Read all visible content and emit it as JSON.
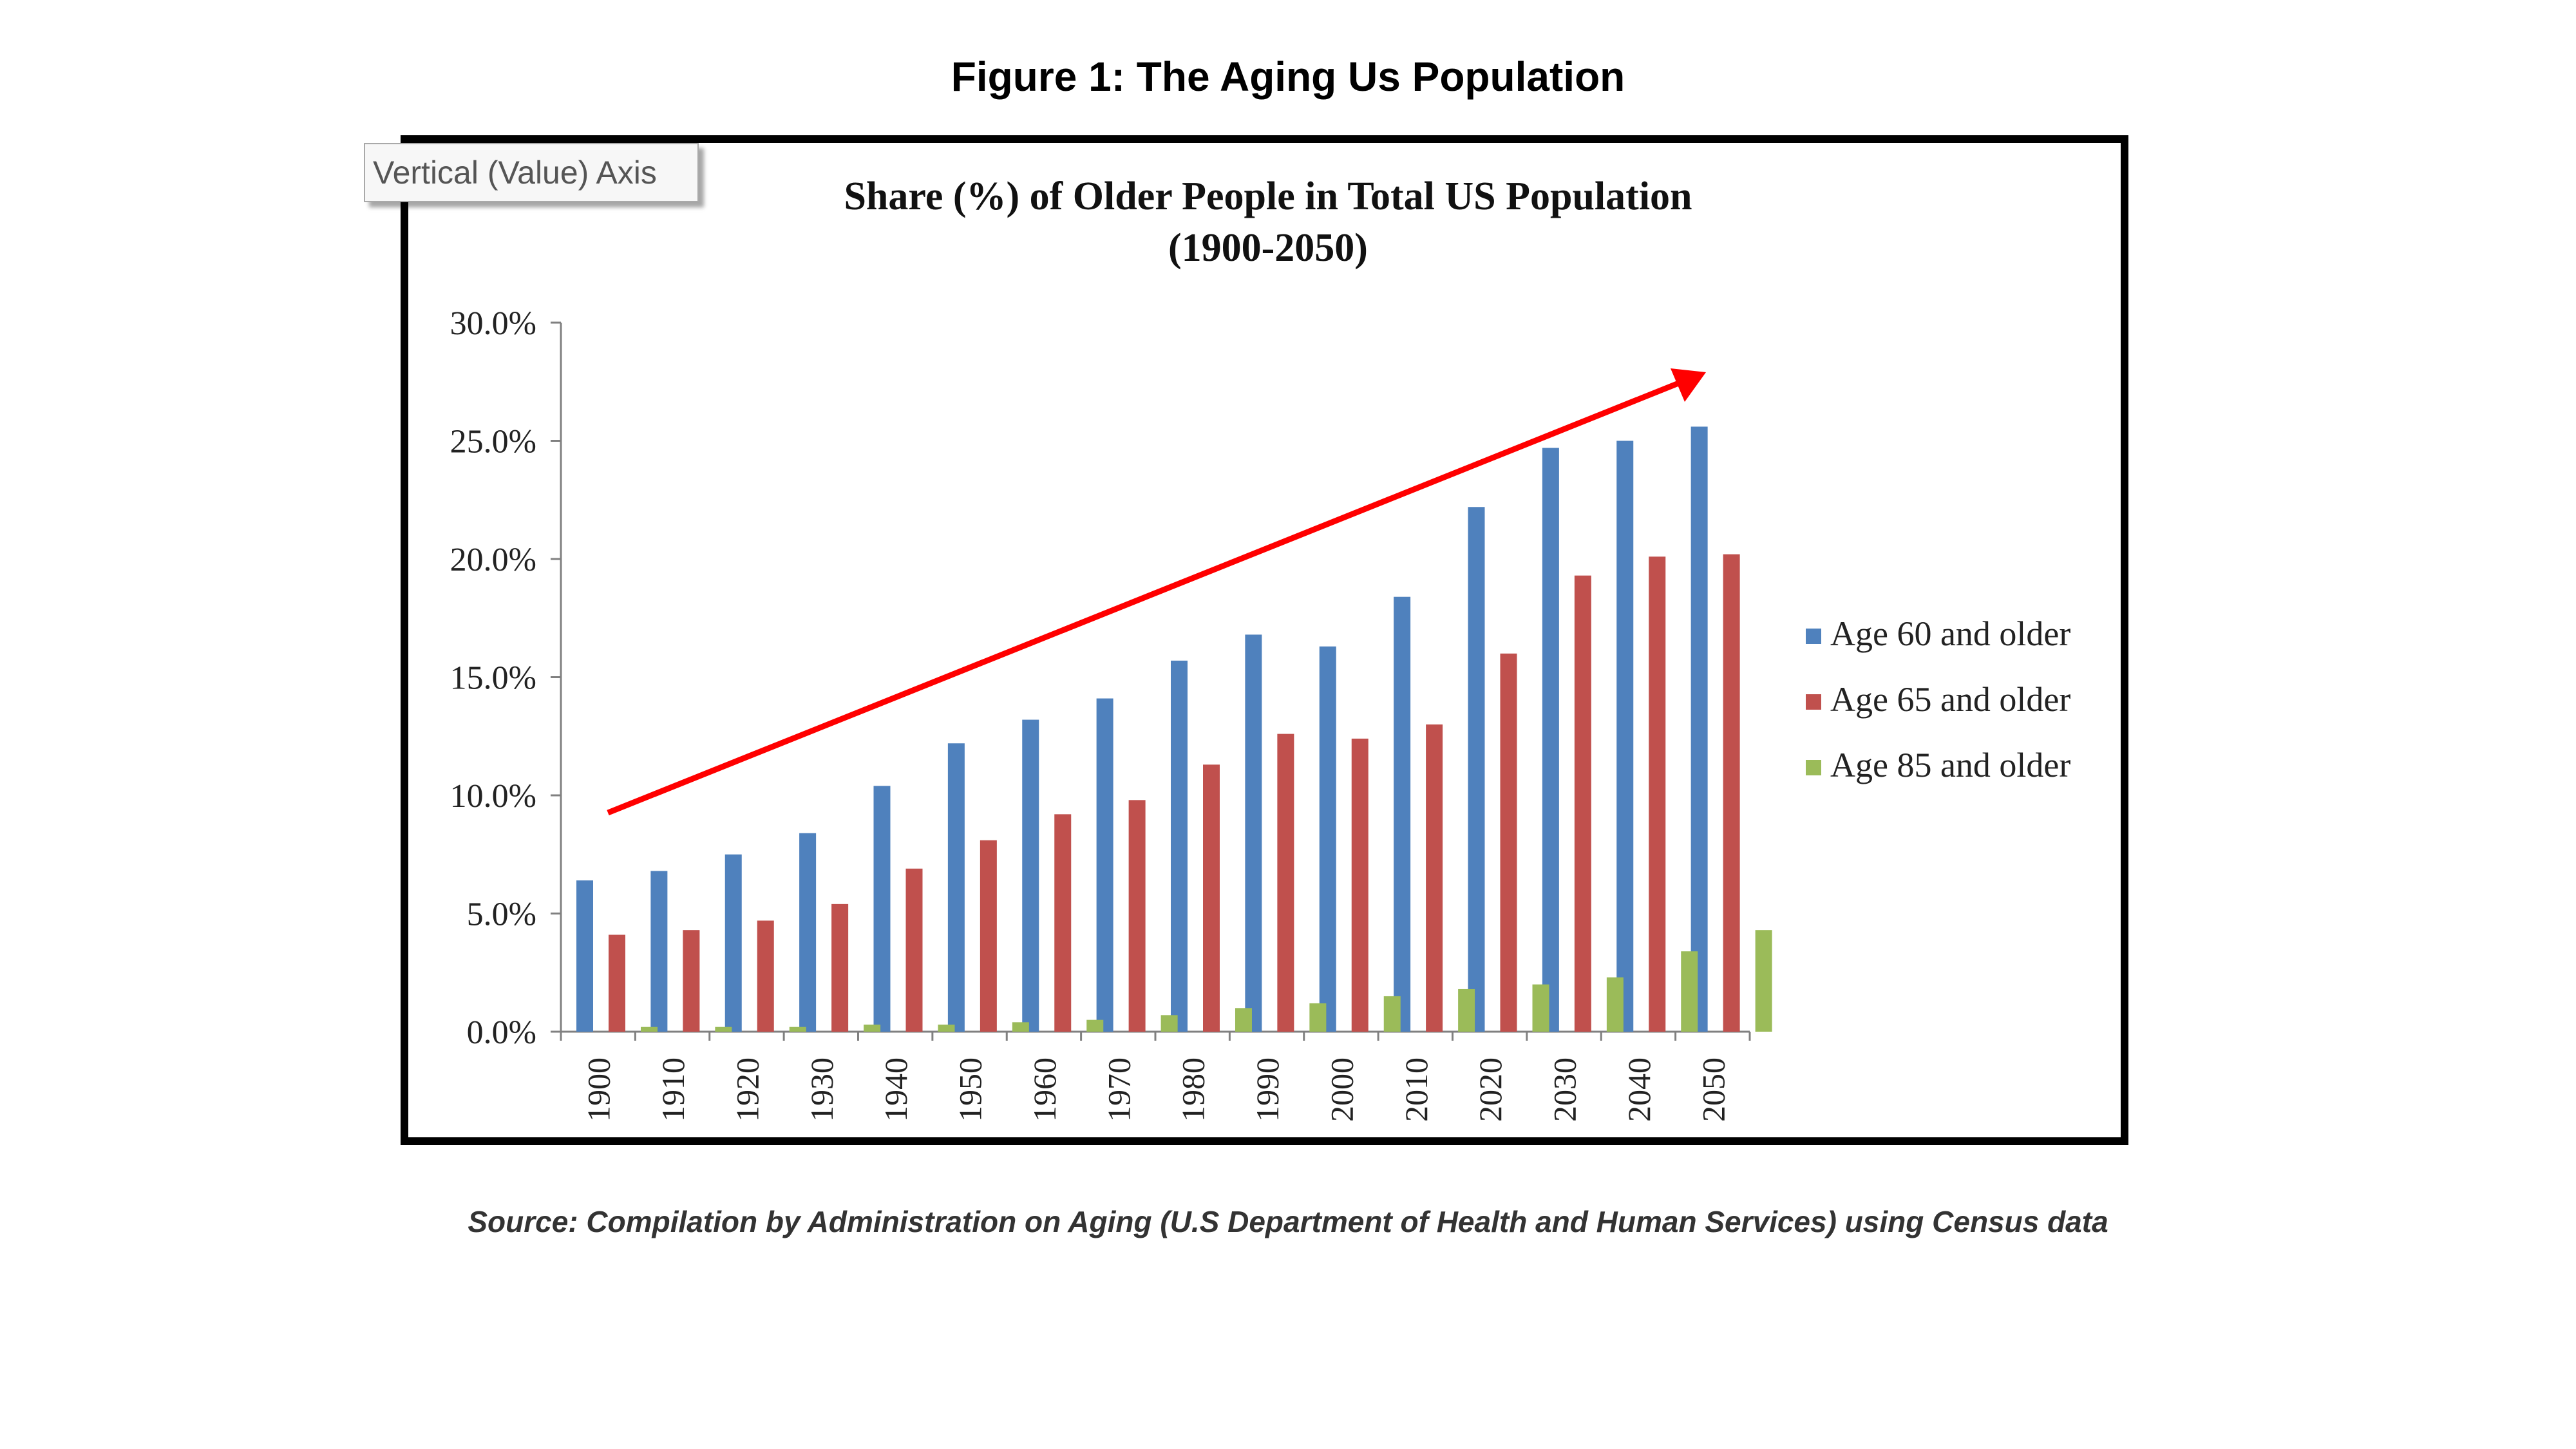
{
  "figure_title": "Figure 1: The Aging Us Population",
  "tooltip": "Vertical (Value) Axis",
  "source": "Source: Compilation by Administration on Aging (U.S Department of Health and Human Services) using Census data",
  "chart_data": {
    "type": "bar",
    "title": "Share (%) of Older People in Total US Population",
    "subtitle": "(1900-2050)",
    "xlabel": "",
    "ylabel": "",
    "ylim": [
      0,
      30
    ],
    "yticks": [
      "0.0%",
      "5.0%",
      "10.0%",
      "15.0%",
      "20.0%",
      "25.0%",
      "30.0%"
    ],
    "categories": [
      "1900",
      "1910",
      "1920",
      "1930",
      "1940",
      "1950",
      "1960",
      "1970",
      "1980",
      "1990",
      "2000",
      "2010",
      "2020",
      "2030",
      "2040",
      "2050"
    ],
    "series": [
      {
        "name": "Age 60 and older",
        "color": "#4f81bd",
        "values": [
          6.4,
          6.8,
          7.5,
          8.4,
          10.4,
          12.2,
          13.2,
          14.1,
          15.7,
          16.8,
          16.3,
          18.4,
          22.2,
          24.7,
          25.0,
          25.6
        ]
      },
      {
        "name": "Age 65 and older",
        "color": "#c0504d",
        "values": [
          4.1,
          4.3,
          4.7,
          5.4,
          6.9,
          8.1,
          9.2,
          9.8,
          11.3,
          12.6,
          12.4,
          13.0,
          16.0,
          19.3,
          20.1,
          20.2
        ]
      },
      {
        "name": "Age 85 and older",
        "color": "#9bbb59",
        "values": [
          0.2,
          0.2,
          0.2,
          0.3,
          0.3,
          0.4,
          0.5,
          0.7,
          1.0,
          1.2,
          1.5,
          1.8,
          2.0,
          2.3,
          3.4,
          4.3
        ]
      }
    ],
    "legend": "right",
    "grid": false,
    "annotation": "red trend arrow rising from 1900 to 2050",
    "arrow_color": "#ff0000"
  }
}
